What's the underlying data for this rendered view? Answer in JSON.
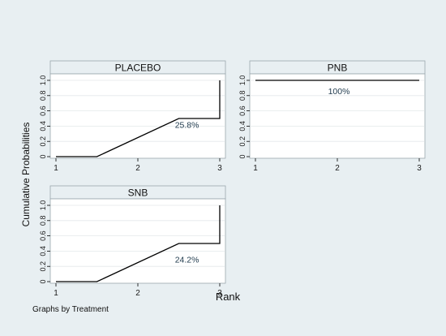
{
  "colors": {
    "outer_background": "#e8eff2",
    "plot_background": "#ffffff",
    "strip_background": "#e8eff2",
    "grid": "#e4e8ea",
    "line": "#000000",
    "annotation": "#1f3a4d"
  },
  "chart_data": {
    "type": "line",
    "by": "Treatment",
    "xlabel": "Rank",
    "ylabel": "Cumulative Probabilities",
    "note": "Graphs by Treatment",
    "xlim": [
      1,
      3
    ],
    "ylim": [
      0,
      1
    ],
    "xticks": [
      "1",
      "2",
      "3"
    ],
    "yticks": [
      "0",
      "0.2",
      "0.4",
      "0.6",
      "0.8",
      "1.0"
    ],
    "grid": true,
    "panels": [
      {
        "title": "PLACEBO",
        "annotation": "25.8%",
        "annotation_at": [
          2.6,
          0.38
        ],
        "points": [
          [
            1,
            0
          ],
          [
            1.5,
            0
          ],
          [
            2.5,
            0.5
          ],
          [
            3,
            0.5
          ],
          [
            3,
            1.0
          ]
        ]
      },
      {
        "title": "PNB",
        "annotation": "100%",
        "annotation_at": [
          2.02,
          0.82
        ],
        "points": [
          [
            1,
            1.0
          ],
          [
            3,
            1.0
          ]
        ]
      },
      {
        "title": "SNB",
        "annotation": "24.2%",
        "annotation_at": [
          2.6,
          0.25
        ],
        "points": [
          [
            1,
            0
          ],
          [
            1.5,
            0
          ],
          [
            2.5,
            0.5
          ],
          [
            3,
            0.5
          ],
          [
            3,
            1.0
          ]
        ]
      }
    ]
  }
}
